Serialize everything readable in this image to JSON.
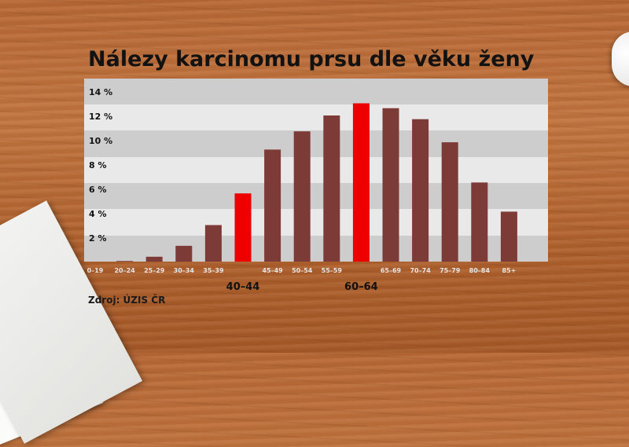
{
  "title": "Nálezy karcinomu prsu dle věku ženy",
  "source": "Zdroj: ÚZIS ČR",
  "colors": {
    "bar": "#7d3b37",
    "highlight": "#ee0000",
    "band_light": "#e9e9e9",
    "band_dark": "#cdcdcd"
  },
  "chart_data": {
    "type": "bar",
    "title": "Nálezy karcinomu prsu dle věku ženy",
    "categories": [
      "0–19",
      "20–24",
      "25–29",
      "30–34",
      "35–39",
      "40–44",
      "45–49",
      "50–54",
      "55–59",
      "60–64",
      "65–69",
      "70–74",
      "75–79",
      "80–84",
      "85+"
    ],
    "values": [
      0,
      0.05,
      0.4,
      1.3,
      3.0,
      5.6,
      9.2,
      10.7,
      12.0,
      13.0,
      12.6,
      11.7,
      9.8,
      6.5,
      4.1
    ],
    "highlighted": [
      "40–44",
      "60–64"
    ],
    "yticks": [
      "2 %",
      "4 %",
      "6 %",
      "8 %",
      "10 %",
      "12 %",
      "14 %"
    ],
    "ylim": [
      1,
      14
    ],
    "grid": "alternating bands",
    "legend": "none"
  }
}
